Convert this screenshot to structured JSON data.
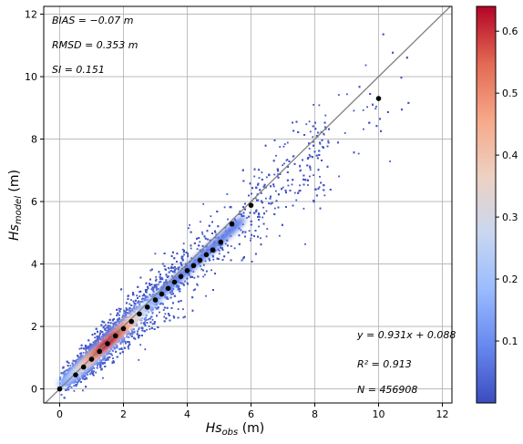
{
  "chart_data": {
    "type": "scatter",
    "subtype": "density-scatter",
    "title": "",
    "xlabel": {
      "main": "Hs",
      "sub": "obs",
      "unit": " (m)"
    },
    "ylabel": {
      "main": "Hs",
      "sub": "model",
      "unit": " (m)"
    },
    "xlim": [
      -0.5,
      12.3
    ],
    "ylim": [
      -0.45,
      12.25
    ],
    "xticks": [
      0,
      2,
      4,
      6,
      8,
      10,
      12
    ],
    "yticks": [
      0,
      2,
      4,
      6,
      8,
      10,
      12
    ],
    "grid": true,
    "identity_line": {
      "from": [
        -0.5,
        -0.5
      ],
      "to": [
        12.3,
        12.3
      ],
      "color": "#808080"
    },
    "stats": {
      "bias": "BIAS = −0.07 m",
      "rmsd": "RMSD = 0.353 m",
      "si": "SI = 0.151",
      "fit": "y = 0.931x + 0.088",
      "r2": "R² = 0.913",
      "n": "N = 456908"
    },
    "density_band": {
      "description_points": [
        [
          0.0,
          0.0
        ],
        [
          2.0,
          1.95
        ],
        [
          4.0,
          3.8
        ],
        [
          6.0,
          5.7
        ],
        [
          8.0,
          7.5
        ],
        [
          10.0,
          9.3
        ]
      ],
      "max_density_x_range": [
        0.8,
        3.0
      ]
    },
    "binned_means": {
      "x": [
        0.0,
        0.5,
        0.75,
        1.0,
        1.25,
        1.5,
        1.75,
        2.0,
        2.25,
        2.5,
        2.75,
        3.0,
        3.2,
        3.4,
        3.6,
        3.8,
        4.0,
        4.2,
        4.4,
        4.6,
        4.8,
        5.05,
        5.4,
        6.0,
        10.0
      ],
      "y": [
        0.0,
        0.45,
        0.7,
        0.95,
        1.2,
        1.45,
        1.7,
        1.93,
        2.16,
        2.4,
        2.62,
        2.85,
        3.04,
        3.22,
        3.42,
        3.6,
        3.79,
        3.95,
        4.12,
        4.3,
        4.45,
        4.7,
        5.28,
        5.88,
        9.3
      ],
      "color": "#000000"
    },
    "colorbar": {
      "min": 0.0,
      "max": 0.64,
      "ticks": [
        0.1,
        0.2,
        0.3,
        0.4,
        0.5,
        0.6
      ],
      "colormap": "coolwarm",
      "stops": [
        "#3b4cc0",
        "#6788ee",
        "#9abbff",
        "#c9d7f0",
        "#edd1c2",
        "#f7a889",
        "#e26952",
        "#b40426"
      ]
    }
  }
}
